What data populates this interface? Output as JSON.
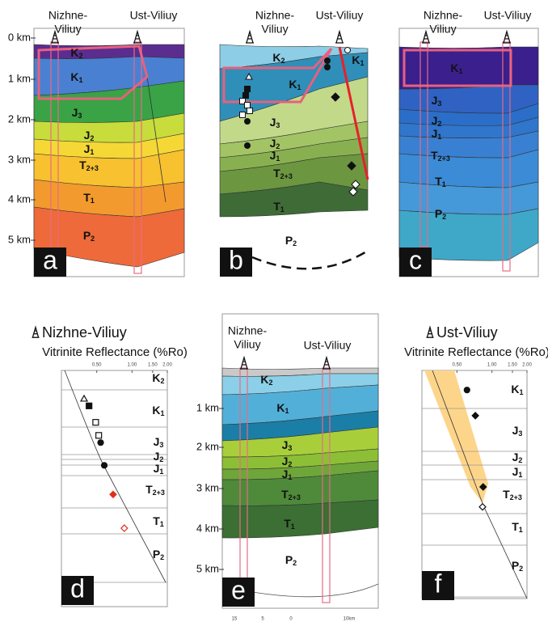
{
  "panels": {
    "a": {
      "letter": "a",
      "wells": [
        [
          "Nizhne-",
          "Viliuy"
        ],
        [
          "Ust-Viliuy"
        ]
      ],
      "depth_ticks": [
        "0 km",
        "1 km",
        "2 km",
        "3 km",
        "4 km",
        "5 km"
      ],
      "layers": [
        {
          "main": "K",
          "sub": "2"
        },
        {
          "main": "K",
          "sub": "1"
        },
        {
          "main": "J",
          "sub": "3"
        },
        {
          "main": "J",
          "sub": "2"
        },
        {
          "main": "J",
          "sub": "1"
        },
        {
          "main": "T",
          "sub": "2+3"
        },
        {
          "main": "T",
          "sub": "1"
        },
        {
          "main": "P",
          "sub": "2"
        }
      ]
    },
    "b": {
      "letter": "b",
      "wells": [
        [
          "Nizhne-",
          "Viliuy"
        ],
        [
          "Ust-Viliuy"
        ]
      ],
      "layers": [
        {
          "main": "K",
          "sub": "2"
        },
        {
          "main": "K",
          "sub": "1"
        },
        {
          "main": "K",
          "sub": "1"
        },
        {
          "main": "J",
          "sub": "3"
        },
        {
          "main": "J",
          "sub": "2"
        },
        {
          "main": "J",
          "sub": "1"
        },
        {
          "main": "T",
          "sub": "2+3"
        },
        {
          "main": "T",
          "sub": "1"
        },
        {
          "main": "P",
          "sub": "2"
        }
      ]
    },
    "c": {
      "letter": "c",
      "wells": [
        [
          "Nizhne-",
          "Viliuy"
        ],
        [
          "Ust-Viliuy"
        ]
      ],
      "layers": [
        {
          "main": "K",
          "sub": "1"
        },
        {
          "main": "J",
          "sub": "3"
        },
        {
          "main": "J",
          "sub": "2"
        },
        {
          "main": "J",
          "sub": "1"
        },
        {
          "main": "T",
          "sub": "2+3"
        },
        {
          "main": "T",
          "sub": "1"
        },
        {
          "main": "P",
          "sub": "2"
        }
      ]
    },
    "e": {
      "letter": "e",
      "wells": [
        [
          "Nizhne-",
          "Viliuy"
        ],
        [
          "Ust-Viliuy"
        ]
      ],
      "depth_ticks": [
        "1 km",
        "2 km",
        "3 km",
        "4 km",
        "5 km"
      ],
      "layers": [
        {
          "main": "K",
          "sub": "2"
        },
        {
          "main": "K",
          "sub": "1"
        },
        {
          "main": "J",
          "sub": "3"
        },
        {
          "main": "J",
          "sub": "2"
        },
        {
          "main": "J",
          "sub": "1"
        },
        {
          "main": "T",
          "sub": "2+3"
        },
        {
          "main": "T",
          "sub": "1"
        },
        {
          "main": "P",
          "sub": "2"
        }
      ],
      "scale_bar": [
        "15",
        "5",
        "0",
        "10km"
      ]
    }
  },
  "chart_data": [
    {
      "type": "scatter",
      "letter": "d",
      "title": "Nizhne-Viliuy",
      "x_label": "Vitrinite Reflectance (%Ro)",
      "log_x": true,
      "xlim": [
        0.25,
        2.0
      ],
      "xticks": [
        {
          "value": 0.5,
          "label": "0.50"
        },
        {
          "value": 1.0,
          "label": "1.00"
        },
        {
          "value": 1.5,
          "label": "1.50"
        },
        {
          "value": 2.0,
          "label": "2.00"
        }
      ],
      "ylim": [
        0,
        5.6
      ],
      "layers": [
        {
          "main": "K",
          "sub": "2"
        },
        {
          "main": "K",
          "sub": "1"
        },
        {
          "main": "J",
          "sub": "3"
        },
        {
          "main": "J",
          "sub": "2"
        },
        {
          "main": "J",
          "sub": "1"
        },
        {
          "main": "T",
          "sub": "2+3"
        },
        {
          "main": "T",
          "sub": "1"
        },
        {
          "main": "P",
          "sub": "2"
        }
      ],
      "points": [
        {
          "ro": 0.39,
          "depth": 0.67,
          "marker": "triangle-open",
          "color": "#111"
        },
        {
          "ro": 0.43,
          "depth": 0.84,
          "marker": "square",
          "color": "#111"
        },
        {
          "ro": 0.49,
          "depth": 1.23,
          "marker": "square-open",
          "color": "#111"
        },
        {
          "ro": 0.52,
          "depth": 1.54,
          "marker": "square-open",
          "color": "#111"
        },
        {
          "ro": 0.54,
          "depth": 1.71,
          "marker": "circle",
          "color": "#111"
        },
        {
          "ro": 0.58,
          "depth": 2.25,
          "marker": "circle",
          "color": "#111"
        },
        {
          "ro": 0.69,
          "depth": 2.94,
          "marker": "diamond",
          "color": "#e0301e"
        },
        {
          "ro": 0.86,
          "depth": 3.74,
          "marker": "diamond-open",
          "color": "#e0301e"
        }
      ]
    },
    {
      "type": "scatter",
      "letter": "f",
      "title": "Ust-Viliuy",
      "x_label": "Vitrinite Reflectance (%Ro)",
      "log_x": true,
      "xlim": [
        0.25,
        2.0
      ],
      "xticks": [
        {
          "value": 0.5,
          "label": "0.50"
        },
        {
          "value": 1.0,
          "label": "1.00"
        },
        {
          "value": 1.5,
          "label": "1.50"
        },
        {
          "value": 2.0,
          "label": "2.00"
        }
      ],
      "ylim": [
        0,
        5.6
      ],
      "layers": [
        {
          "main": "K",
          "sub": "1"
        },
        {
          "main": "J",
          "sub": "3"
        },
        {
          "main": "J",
          "sub": "2"
        },
        {
          "main": "J",
          "sub": "1"
        },
        {
          "main": "T",
          "sub": "2+3"
        },
        {
          "main": "T",
          "sub": "1"
        },
        {
          "main": "P",
          "sub": "2"
        }
      ],
      "points": [
        {
          "ro": 0.61,
          "depth": 0.48,
          "marker": "circle",
          "color": "#111"
        },
        {
          "ro": 0.72,
          "depth": 1.11,
          "marker": "diamond",
          "color": "#111"
        },
        {
          "ro": 0.84,
          "depth": 2.86,
          "marker": "diamond",
          "color": "#111"
        },
        {
          "ro": 0.83,
          "depth": 3.35,
          "marker": "diamond-open",
          "color": "#111"
        }
      ]
    }
  ]
}
